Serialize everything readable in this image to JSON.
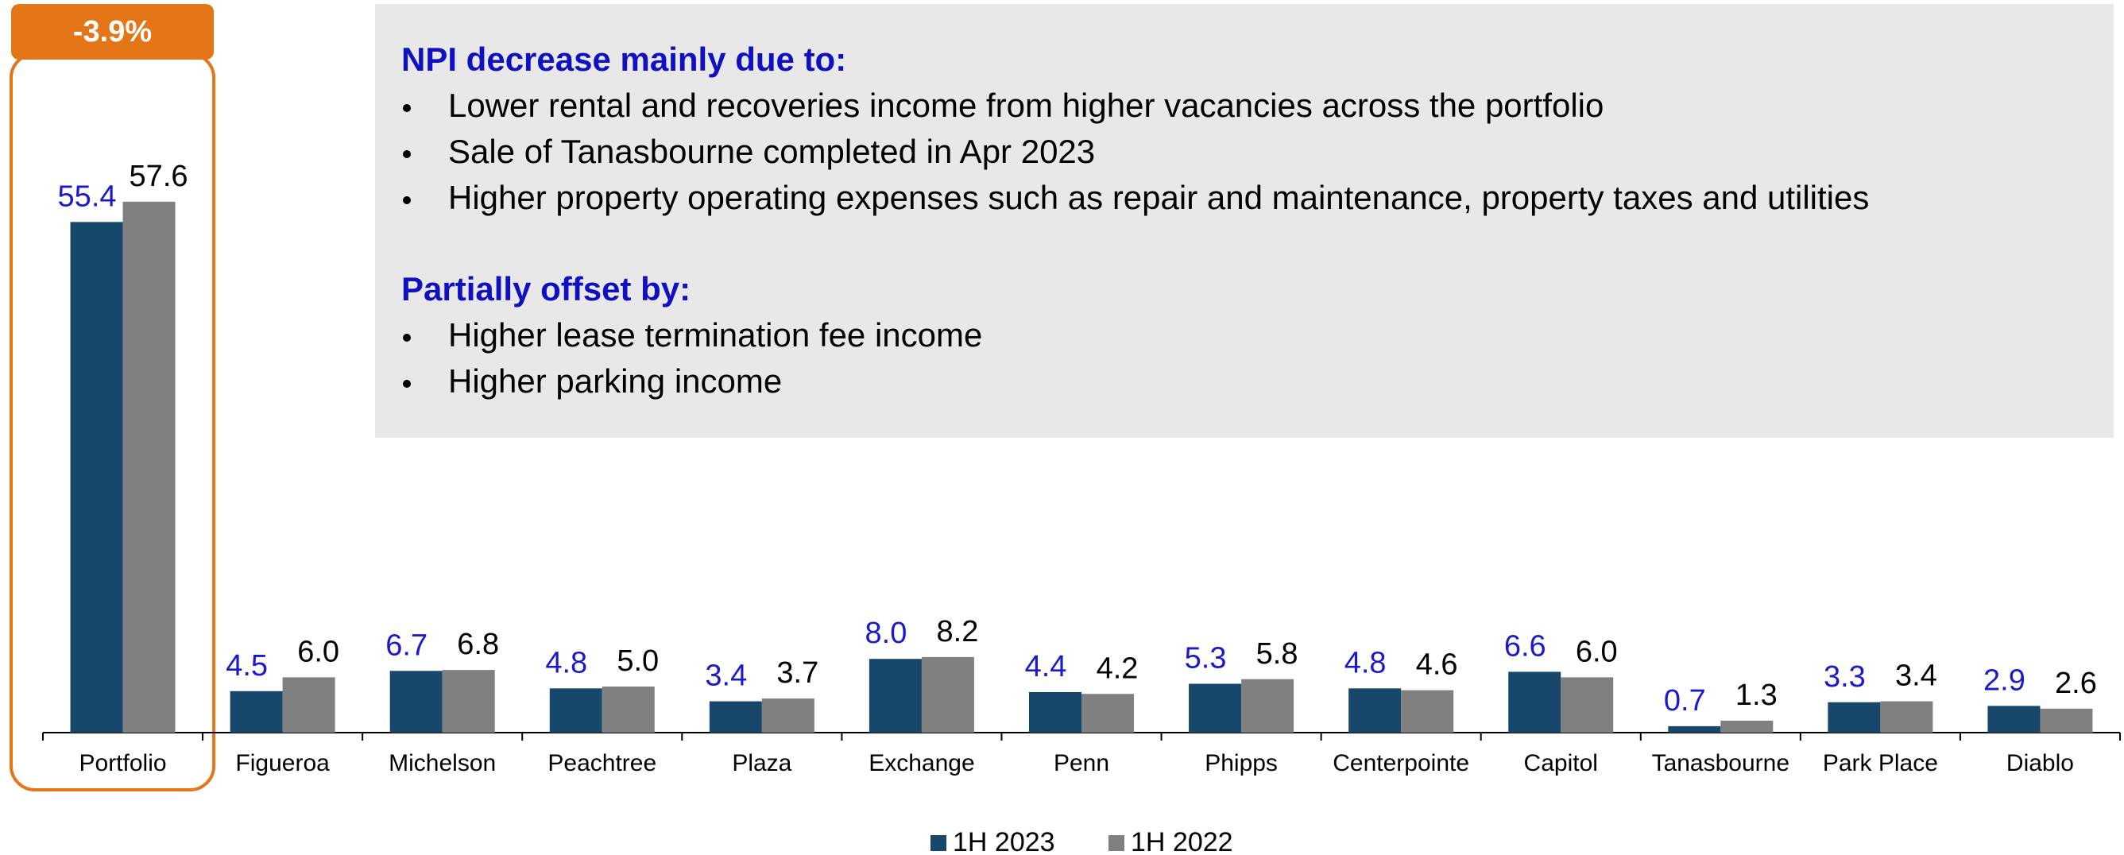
{
  "chart_data": {
    "type": "bar",
    "categories": [
      "Portfolio",
      "Figueroa",
      "Michelson",
      "Peachtree",
      "Plaza",
      "Exchange",
      "Penn",
      "Phipps",
      "Centerpointe",
      "Capitol",
      "Tanasbourne",
      "Park Place",
      "Diablo"
    ],
    "series": [
      {
        "name": "1H 2023",
        "color": "#17486b",
        "label_color": "#1a1acc",
        "values": [
          55.4,
          4.5,
          6.7,
          4.8,
          3.4,
          8.0,
          4.4,
          5.3,
          4.8,
          6.6,
          0.7,
          3.3,
          2.9
        ],
        "value_labels": [
          "55.4",
          "4.5",
          "6.7",
          "4.8",
          "3.4",
          "8.0",
          "4.4",
          "5.3",
          "4.8",
          "6.6",
          "0.7",
          "3.3",
          "2.9"
        ]
      },
      {
        "name": "1H 2022",
        "color": "#808080",
        "label_color": "#000000",
        "values": [
          57.6,
          6.0,
          6.8,
          5.0,
          3.7,
          8.2,
          4.2,
          5.8,
          4.6,
          6.0,
          1.3,
          3.4,
          2.6
        ],
        "value_labels": [
          "57.6",
          "6.0",
          "6.8",
          "5.0",
          "3.7",
          "8.2",
          "4.2",
          "5.8",
          "4.6",
          "6.0",
          "1.3",
          "3.4",
          "2.6"
        ]
      }
    ],
    "ylim": [
      0,
      80
    ],
    "highlight": {
      "category": "Portfolio",
      "label": "-3.9%",
      "color": "#e47617"
    },
    "notes": [
      {
        "heading": "NPI decrease mainly due to:",
        "bullets": [
          "Lower rental and recoveries income from higher vacancies across the portfolio",
          "Sale of Tanasbourne completed in Apr 2023",
          "Higher property operating expenses such as repair and maintenance, property taxes and utilities"
        ]
      },
      {
        "heading": "Partially offset by:",
        "bullets": [
          "Higher lease termination fee income",
          "Higher parking income"
        ]
      }
    ],
    "legend": "bottom"
  }
}
